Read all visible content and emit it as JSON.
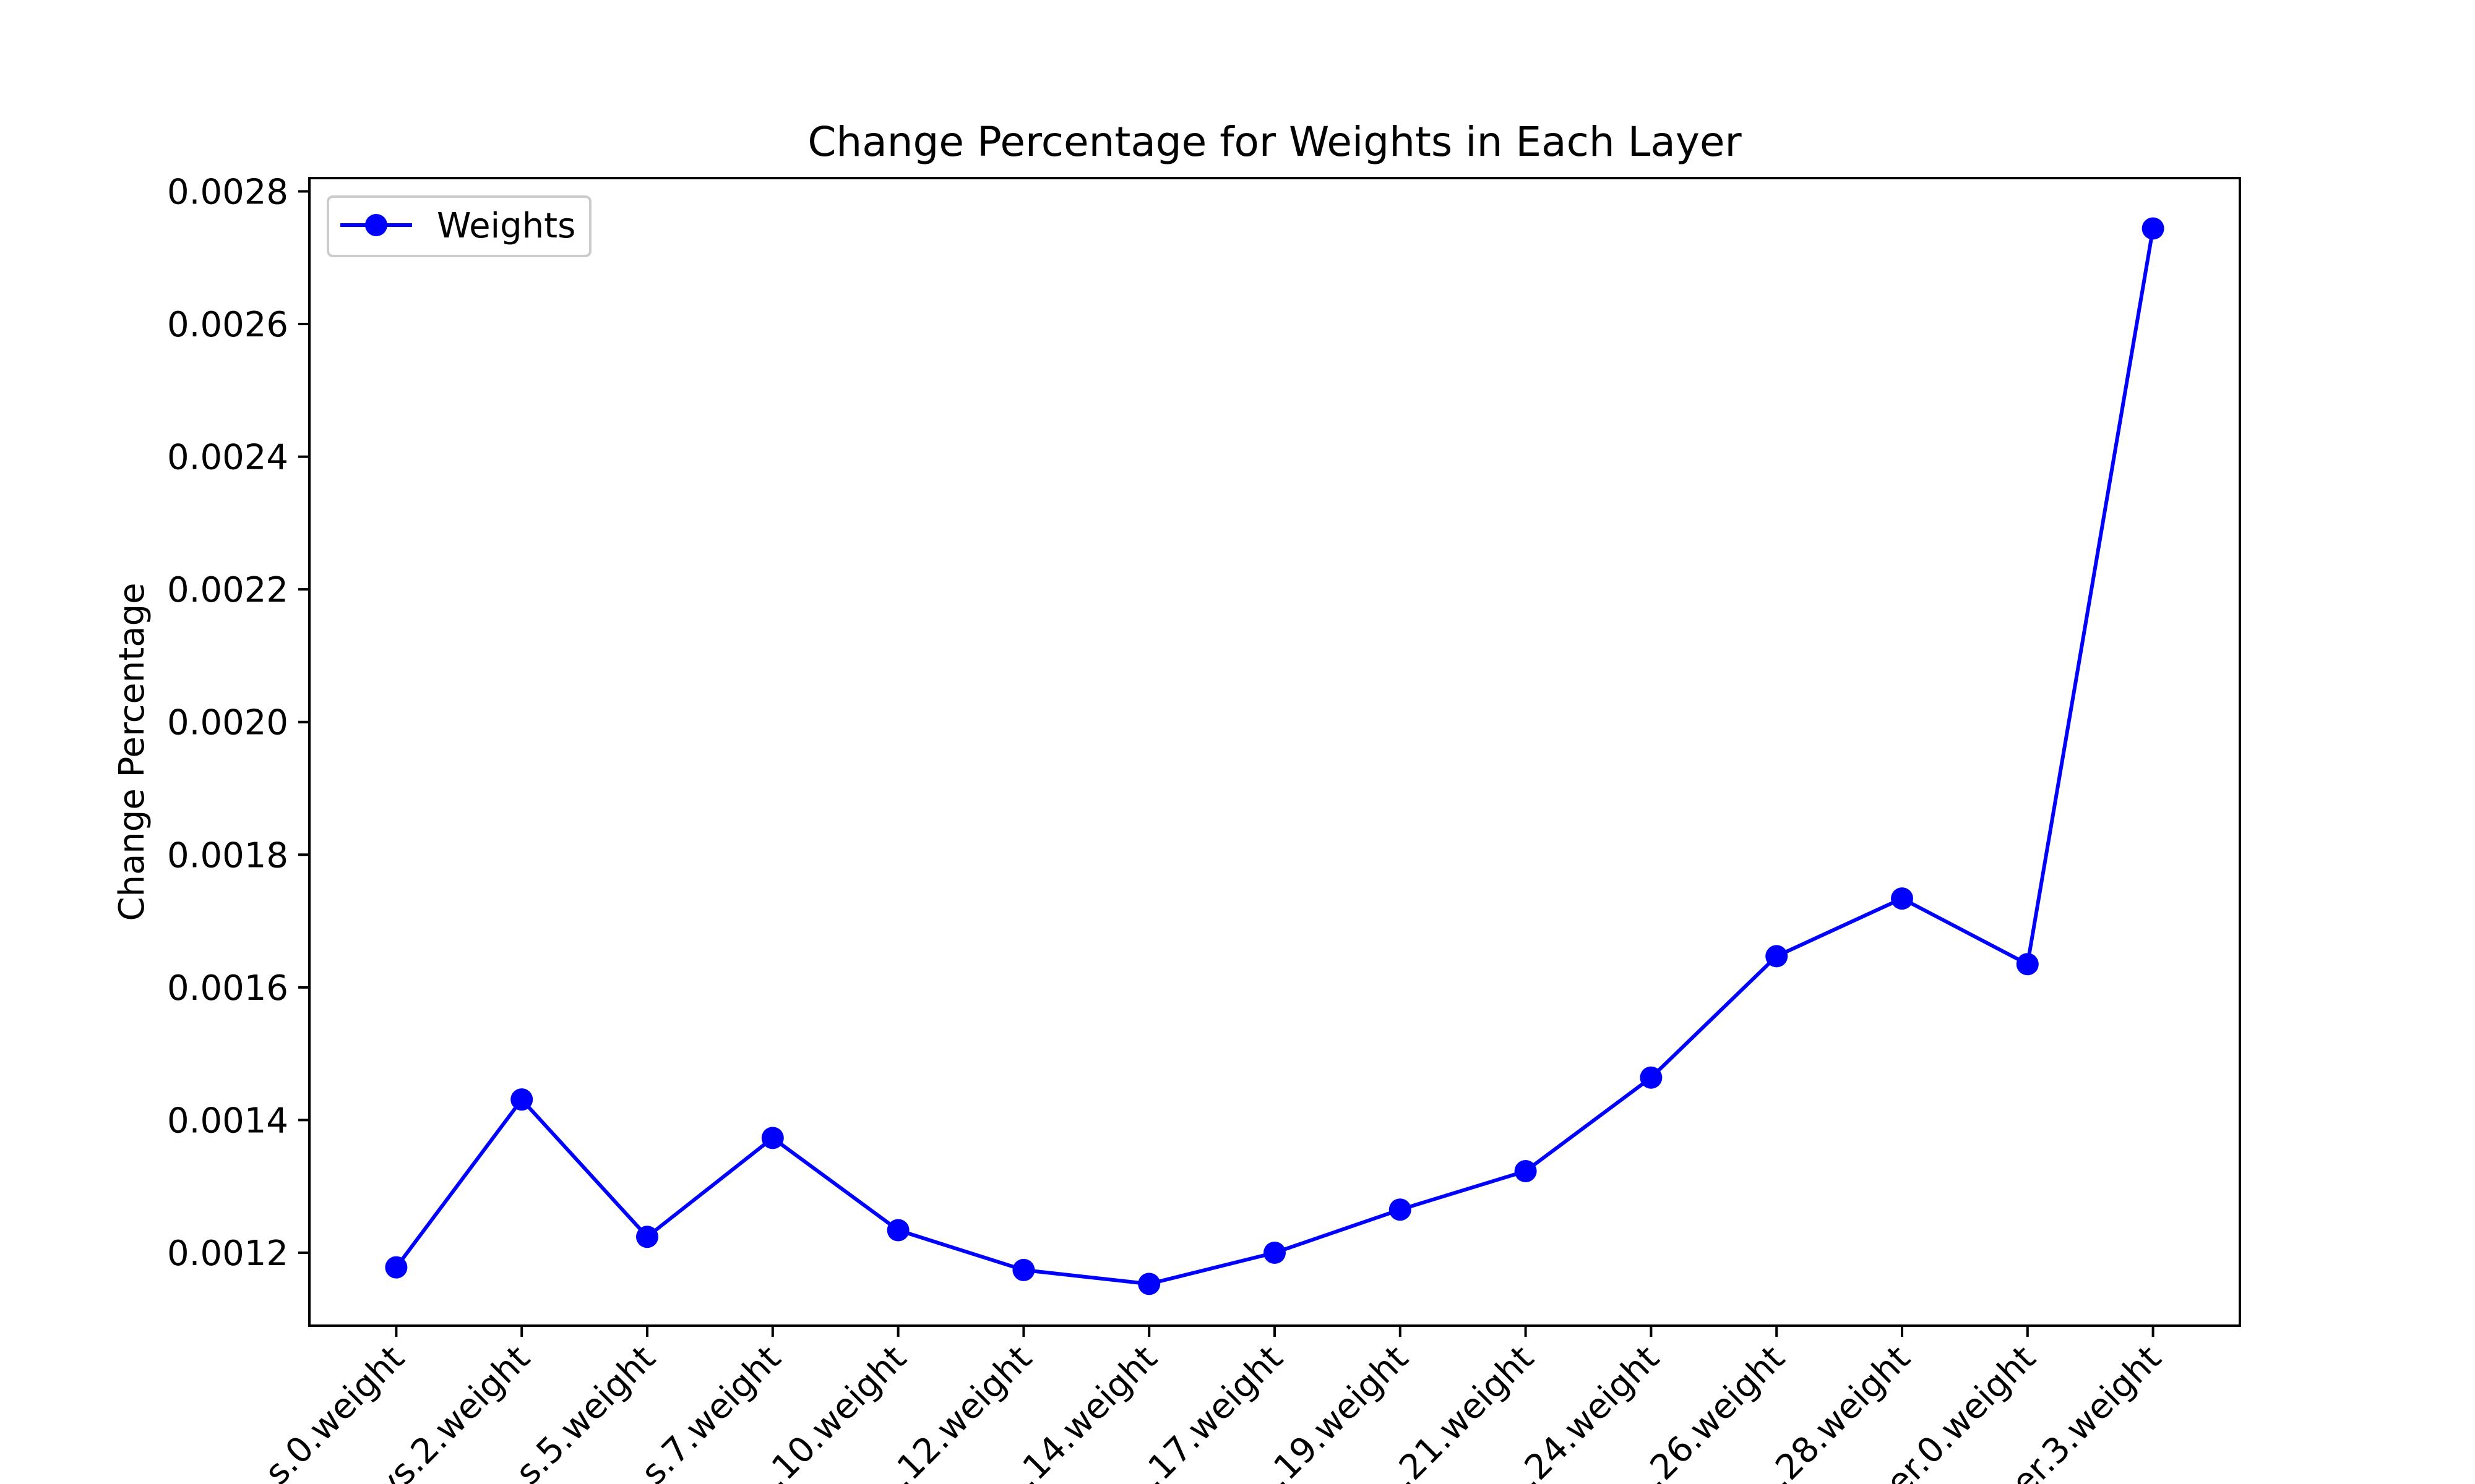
{
  "chart_data": {
    "type": "line",
    "title": "Change Percentage for Weights in Each Layer",
    "xlabel": "",
    "ylabel": "Change Percentage",
    "ylim": [
      0.00109,
      0.00282
    ],
    "yticks": [
      0.0012,
      0.0014,
      0.0016,
      0.0018,
      0.002,
      0.0022,
      0.0024,
      0.0026,
      0.0028
    ],
    "ytick_labels": [
      "0.0012",
      "0.0014",
      "0.0016",
      "0.0018",
      "0.0020",
      "0.0022",
      "0.0024",
      "0.0026",
      "0.0028"
    ],
    "categories": [
      "s.0.weight",
      "ys.2.weight",
      "s.5.weight",
      "s.7.weight",
      ".10.weight",
      ".12.weight",
      ".14.weight",
      ".17.weight",
      ".19.weight",
      ".21.weight",
      ".24.weight",
      ".26.weight",
      ".28.weight",
      "er.0.weight",
      "er.3.weight"
    ],
    "series": [
      {
        "name": "Weights",
        "color": "#0000ff",
        "marker": "circle",
        "values": [
          0.001178,
          0.001431,
          0.001224,
          0.001373,
          0.001234,
          0.001174,
          0.001153,
          0.0012,
          0.001265,
          0.001323,
          0.001464,
          0.001647,
          0.001734,
          0.001635,
          0.002744
        ]
      }
    ],
    "legend_position": "top-left",
    "grid": false
  }
}
